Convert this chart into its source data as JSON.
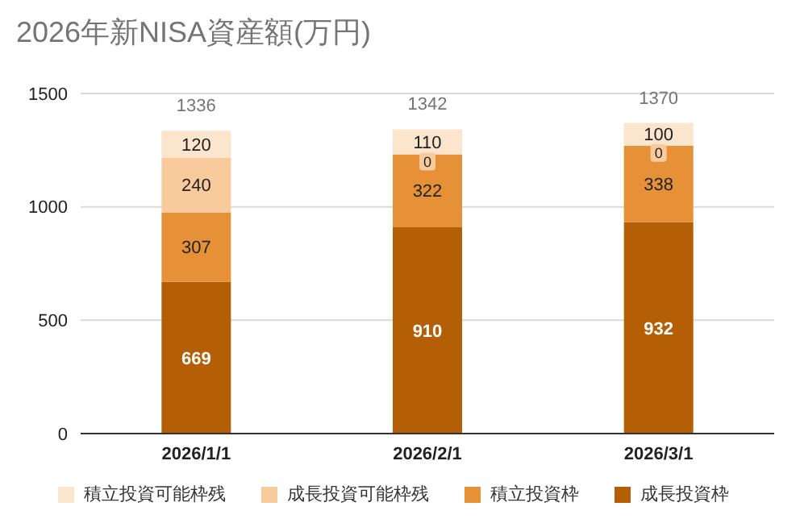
{
  "chart_data": {
    "type": "bar",
    "title": "2026年新NISA資産額(万円)",
    "categories": [
      "2026/1/1",
      "2026/2/1",
      "2026/3/1"
    ],
    "series": [
      {
        "name": "成長投資枠",
        "color": "#b45f06",
        "values": [
          669,
          910,
          932
        ]
      },
      {
        "name": "積立投資枠",
        "color": "#e69138",
        "values": [
          307,
          322,
          338
        ]
      },
      {
        "name": "成長投資可能枠残",
        "color": "#f9cb9c",
        "values": [
          240,
          0,
          0
        ]
      },
      {
        "name": "積立投資可能枠残",
        "color": "#fce5cd",
        "values": [
          120,
          110,
          100
        ]
      }
    ],
    "stacked": true,
    "data_labels": true,
    "totals": [
      "1336",
      "1342",
      "1370"
    ],
    "ylim": [
      0,
      1500
    ],
    "yticks": [
      0,
      500,
      1000,
      1500
    ],
    "grid": "y",
    "legend": "bottom"
  }
}
